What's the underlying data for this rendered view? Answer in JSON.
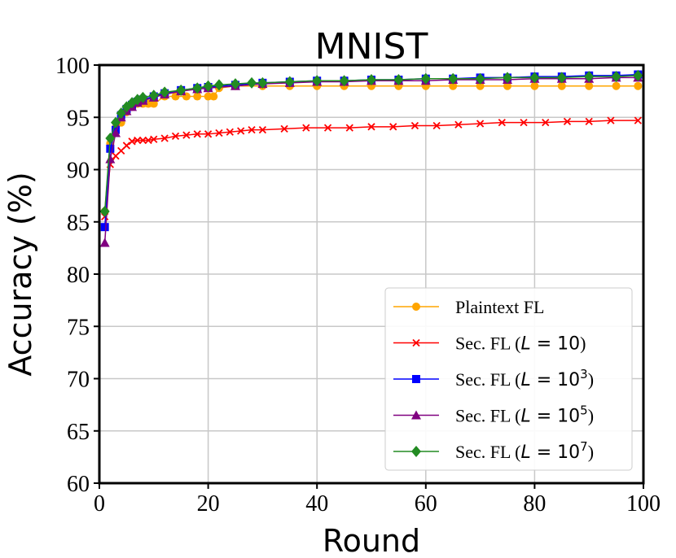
{
  "chart_data": {
    "type": "line",
    "title": "MNIST",
    "xlabel": "Round",
    "ylabel": "Accuracy (%)",
    "xlim": [
      0,
      100
    ],
    "ylim": [
      60,
      100
    ],
    "xticks": [
      0,
      20,
      40,
      60,
      80,
      100
    ],
    "yticks": [
      60,
      65,
      70,
      75,
      80,
      85,
      90,
      95,
      100
    ],
    "grid": true,
    "legend_position": "lower-right",
    "series": [
      {
        "name": "Plaintext FL",
        "label_text": "Plaintext FL",
        "color": "#FFA500",
        "marker": "circle",
        "x": [
          1,
          2,
          3,
          4,
          5,
          6,
          7,
          8,
          9,
          10,
          12,
          14,
          16,
          18,
          20,
          21,
          22,
          25,
          30,
          35,
          40,
          45,
          50,
          55,
          60,
          65,
          70,
          75,
          80,
          85,
          90,
          95,
          99
        ],
        "values": [
          86,
          92.5,
          94,
          94.5,
          95.5,
          96,
          96.3,
          96.3,
          96.3,
          96.3,
          97,
          97,
          97,
          97,
          97,
          97,
          97.8,
          98,
          98,
          98,
          98,
          98,
          98,
          98,
          98,
          98,
          98,
          98,
          98,
          98,
          98,
          98,
          98
        ]
      },
      {
        "name": "Sec. FL (L = 10)",
        "label_prefix": "Sec. FL (",
        "label_var": "L",
        "label_eq": " = ",
        "label_base": "10",
        "label_exp": "",
        "label_suffix": ")",
        "color": "#FF0000",
        "marker": "x",
        "x": [
          1,
          2,
          3,
          4,
          5,
          6,
          7,
          8,
          9,
          10,
          12,
          14,
          16,
          18,
          20,
          22,
          24,
          26,
          28,
          30,
          34,
          38,
          42,
          46,
          50,
          54,
          58,
          62,
          66,
          70,
          74,
          78,
          82,
          86,
          90,
          94,
          99
        ],
        "values": [
          85.5,
          90.5,
          91.3,
          91.8,
          92.3,
          92.7,
          92.8,
          92.8,
          92.8,
          92.9,
          93,
          93.2,
          93.3,
          93.4,
          93.4,
          93.5,
          93.6,
          93.7,
          93.8,
          93.8,
          93.9,
          94,
          94,
          94,
          94.1,
          94.1,
          94.2,
          94.2,
          94.3,
          94.4,
          94.5,
          94.5,
          94.5,
          94.6,
          94.6,
          94.7,
          94.7
        ]
      },
      {
        "name": "Sec. FL (L = 10^3)",
        "label_prefix": "Sec. FL (",
        "label_var": "L",
        "label_eq": " = ",
        "label_base": "10",
        "label_exp": "3",
        "label_suffix": ")",
        "color": "#0000FF",
        "marker": "square",
        "x": [
          1,
          2,
          3,
          4,
          5,
          6,
          7,
          8,
          10,
          12,
          15,
          18,
          20,
          25,
          30,
          35,
          40,
          45,
          50,
          55,
          60,
          65,
          70,
          75,
          80,
          85,
          90,
          95,
          99
        ],
        "values": [
          84.5,
          92,
          93.8,
          95.2,
          95.8,
          96.2,
          96.5,
          96.7,
          97,
          97.3,
          97.6,
          97.8,
          97.9,
          98.1,
          98.3,
          98.4,
          98.5,
          98.5,
          98.6,
          98.6,
          98.7,
          98.7,
          98.8,
          98.8,
          98.9,
          98.9,
          99,
          99,
          99.1
        ]
      },
      {
        "name": "Sec. FL (L = 10^5)",
        "label_prefix": "Sec. FL (",
        "label_var": "L",
        "label_eq": " = ",
        "label_base": "10",
        "label_exp": "5",
        "label_suffix": ")",
        "color": "#800080",
        "marker": "triangle",
        "x": [
          1,
          2,
          3,
          4,
          5,
          6,
          7,
          8,
          10,
          12,
          15,
          18,
          20,
          25,
          30,
          35,
          40,
          45,
          50,
          55,
          60,
          65,
          70,
          75,
          80,
          85,
          90,
          95,
          99
        ],
        "values": [
          83,
          91,
          93.5,
          95,
          95.6,
          96,
          96.4,
          96.6,
          96.9,
          97.2,
          97.5,
          97.7,
          97.8,
          98,
          98.2,
          98.3,
          98.4,
          98.4,
          98.5,
          98.5,
          98.5,
          98.6,
          98.6,
          98.6,
          98.7,
          98.7,
          98.7,
          98.8,
          98.8
        ]
      },
      {
        "name": "Sec. FL (L = 10^7)",
        "label_prefix": "Sec. FL (",
        "label_var": "L",
        "label_eq": " = ",
        "label_base": "10",
        "label_exp": "7",
        "label_suffix": ")",
        "color": "#228B22",
        "marker": "diamond",
        "x": [
          1,
          2,
          3,
          4,
          5,
          6,
          7,
          8,
          10,
          12,
          15,
          18,
          20,
          22,
          25,
          28,
          30,
          35,
          40,
          45,
          50,
          55,
          60,
          65,
          70,
          75,
          80,
          85,
          90,
          95,
          99
        ],
        "values": [
          86,
          93,
          94.5,
          95.4,
          96,
          96.4,
          96.7,
          96.9,
          97.1,
          97.4,
          97.6,
          97.8,
          98,
          98.1,
          98.2,
          98.3,
          98.3,
          98.4,
          98.5,
          98.5,
          98.6,
          98.6,
          98.7,
          98.7,
          98.7,
          98.8,
          98.8,
          98.8,
          98.9,
          98.9,
          99
        ]
      }
    ]
  }
}
